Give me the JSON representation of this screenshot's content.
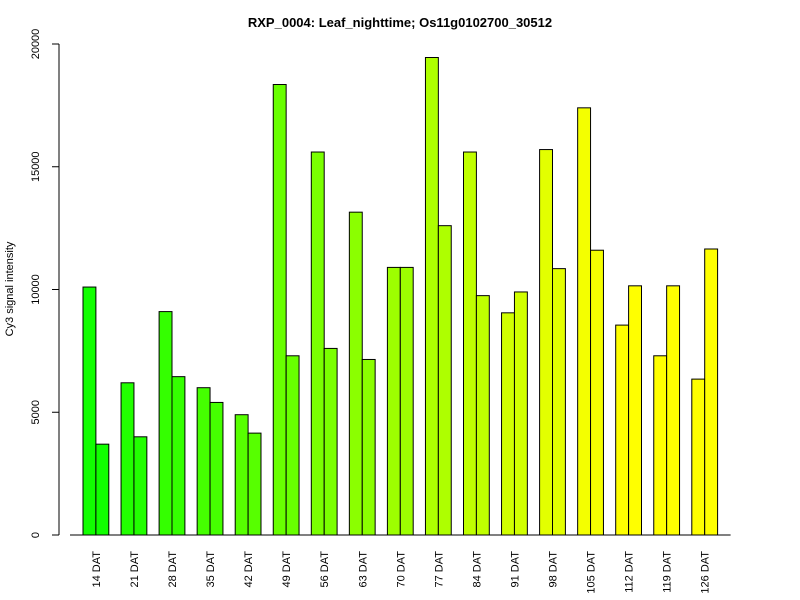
{
  "chart_data": {
    "type": "bar",
    "title": "RXP_0004: Leaf_nighttime; Os11g0102700_30512",
    "xlabel": "",
    "ylabel": "Cy3 signal intensity",
    "ylim": [
      0,
      20000
    ],
    "yticks": [
      0,
      5000,
      10000,
      15000,
      20000
    ],
    "grid": false,
    "categories": [
      "14 DAT",
      "21 DAT",
      "28 DAT",
      "35 DAT",
      "42 DAT",
      "49 DAT",
      "56 DAT",
      "63 DAT",
      "70 DAT",
      "77 DAT",
      "84 DAT",
      "91 DAT",
      "98 DAT",
      "105 DAT",
      "112 DAT",
      "119 DAT",
      "126 DAT"
    ],
    "series": [
      {
        "values": [
          10100,
          6200,
          9100,
          6000,
          4900,
          18350,
          15600,
          13150,
          10900,
          19450,
          15600,
          9050,
          15700,
          17400,
          8550,
          7300,
          6350
        ]
      },
      {
        "values": [
          3700,
          4000,
          6450,
          5400,
          4150,
          7300,
          7600,
          7150,
          10900,
          12600,
          9750,
          9900,
          10850,
          11600,
          10150,
          10150,
          11650
        ]
      }
    ],
    "colors": [
      "#11ff00",
      "#22ff00",
      "#34ff00",
      "#45ff00",
      "#57ff00",
      "#68ff00",
      "#7aff00",
      "#8bff00",
      "#9dff00",
      "#aeff00",
      "#c0ff00",
      "#d1ff00",
      "#e3ff00",
      "#f4ff00",
      "#ffff00",
      "#ffff00",
      "#ffff00"
    ]
  }
}
